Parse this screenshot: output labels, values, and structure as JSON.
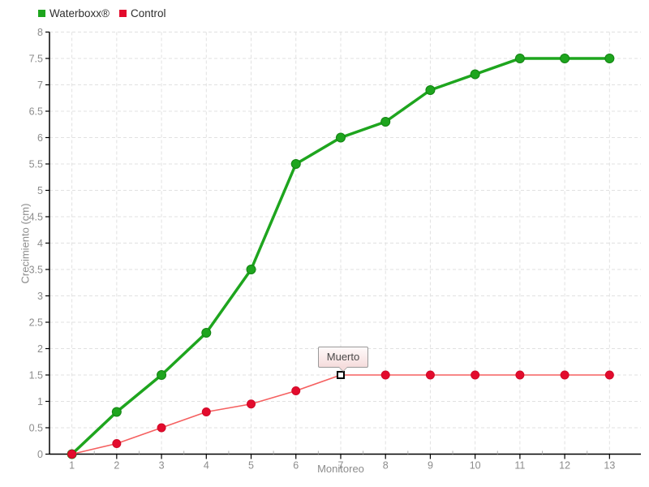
{
  "legend": {
    "items": [
      {
        "label": "Waterboxx®",
        "color": "#1ea51e"
      },
      {
        "label": "Control",
        "color": "#e30b2d"
      }
    ]
  },
  "chart_data": {
    "type": "line",
    "title": "",
    "xlabel": "Monitoreo",
    "ylabel": "Crecimiento (cm)",
    "x": [
      1,
      2,
      3,
      4,
      5,
      6,
      7,
      8,
      9,
      10,
      11,
      12,
      13
    ],
    "series": [
      {
        "name": "Waterboxx®",
        "color": "#1ea51e",
        "marker_stroke": "#128412",
        "line_width": 3.5,
        "marker_radius": 5.5,
        "values": [
          0,
          0.8,
          1.5,
          2.3,
          3.5,
          5.5,
          6,
          6.3,
          6.9,
          7.2,
          7.5,
          7.5,
          7.5
        ]
      },
      {
        "name": "Control",
        "color": "#e30b2d",
        "line_color": "#f56060",
        "marker_stroke": "#d00a28",
        "line_width": 1.6,
        "marker_radius": 5,
        "values": [
          0,
          0.2,
          0.5,
          0.8,
          0.95,
          1.2,
          1.5,
          1.5,
          1.5,
          1.5,
          1.5,
          1.5,
          1.5
        ]
      }
    ],
    "xlim": [
      0.5,
      13.7
    ],
    "ylim": [
      0,
      8
    ],
    "y_tick_step": 0.5,
    "grid": true,
    "legend_position": "top-left",
    "annotation": {
      "label": "Muerto",
      "series": "Control",
      "x": 7,
      "y": 1.5
    }
  }
}
